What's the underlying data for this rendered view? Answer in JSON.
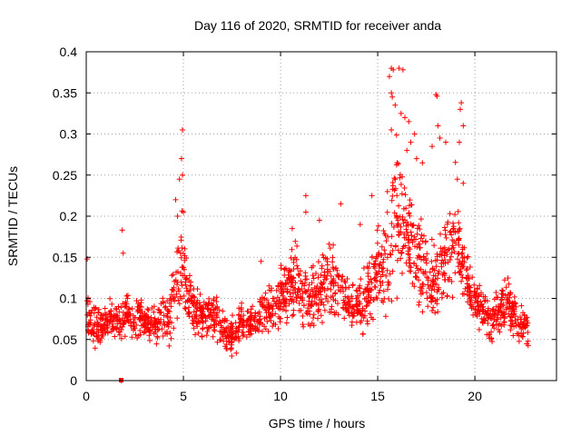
{
  "chart_data": {
    "type": "scatter",
    "title": "Day 116 of 2020, SRMTID for receiver anda",
    "xlabel": "GPS time / hours",
    "ylabel": "SRMTID / TECUs",
    "xlim": [
      0,
      24.2
    ],
    "ylim": [
      0,
      0.4
    ],
    "x_ticks": [
      0,
      5,
      10,
      15,
      20
    ],
    "x_tick_labels": [
      "0",
      "5",
      "10",
      "15",
      "20"
    ],
    "y_ticks": [
      0,
      0.05,
      0.1,
      0.15,
      0.2,
      0.25,
      0.3,
      0.35,
      0.4
    ],
    "y_tick_labels": [
      "0",
      "0.05",
      "0.1",
      "0.15",
      "0.2",
      "0.25",
      "0.3",
      "0.35",
      "0.4"
    ],
    "grid": true,
    "marker": "plus",
    "color": "#ff0000",
    "series": [
      {
        "name": "SRMTID",
        "x": [
          0.0,
          0.25,
          0.5,
          0.75,
          1.0,
          1.25,
          1.5,
          1.75,
          2.0,
          2.25,
          2.5,
          2.75,
          3.0,
          3.25,
          3.5,
          3.75,
          4.0,
          4.25,
          4.5,
          4.75,
          5.0,
          5.25,
          5.5,
          5.75,
          6.0,
          6.25,
          6.5,
          6.75,
          7.0,
          7.25,
          7.5,
          7.75,
          8.0,
          8.25,
          8.5,
          8.75,
          9.0,
          9.25,
          9.5,
          9.75,
          10.0,
          10.25,
          10.5,
          10.75,
          11.0,
          11.25,
          11.5,
          11.75,
          12.0,
          12.25,
          12.5,
          12.75,
          13.0,
          13.25,
          13.5,
          13.75,
          14.0,
          14.25,
          14.5,
          14.75,
          15.0,
          15.25,
          15.5,
          15.75,
          16.0,
          16.25,
          16.5,
          16.75,
          17.0,
          17.25,
          17.5,
          17.75,
          18.0,
          18.25,
          18.5,
          18.75,
          19.0,
          19.25,
          19.5,
          19.75,
          20.0,
          20.25,
          20.5,
          20.75,
          21.0,
          21.25,
          21.5,
          21.75,
          22.0,
          22.25,
          22.5,
          22.75
        ],
        "y": [
          0.075,
          0.07,
          0.065,
          0.06,
          0.07,
          0.075,
          0.072,
          0.068,
          0.085,
          0.08,
          0.075,
          0.078,
          0.072,
          0.068,
          0.066,
          0.07,
          0.074,
          0.08,
          0.1,
          0.14,
          0.15,
          0.11,
          0.09,
          0.08,
          0.08,
          0.082,
          0.078,
          0.07,
          0.06,
          0.058,
          0.055,
          0.06,
          0.07,
          0.07,
          0.075,
          0.078,
          0.08,
          0.085,
          0.09,
          0.095,
          0.1,
          0.11,
          0.12,
          0.12,
          0.11,
          0.1,
          0.1,
          0.105,
          0.11,
          0.12,
          0.12,
          0.115,
          0.11,
          0.1,
          0.095,
          0.09,
          0.09,
          0.095,
          0.11,
          0.12,
          0.13,
          0.14,
          0.15,
          0.18,
          0.2,
          0.18,
          0.17,
          0.16,
          0.15,
          0.14,
          0.13,
          0.13,
          0.13,
          0.135,
          0.14,
          0.15,
          0.2,
          0.15,
          0.13,
          0.11,
          0.1,
          0.09,
          0.08,
          0.075,
          0.08,
          0.085,
          0.09,
          0.09,
          0.08,
          0.07,
          0.065,
          0.06
        ],
        "spread": [
          0.03,
          0.03,
          0.025,
          0.025,
          0.025,
          0.025,
          0.025,
          0.025,
          0.03,
          0.03,
          0.03,
          0.03,
          0.025,
          0.025,
          0.025,
          0.025,
          0.03,
          0.035,
          0.05,
          0.08,
          0.08,
          0.05,
          0.035,
          0.03,
          0.03,
          0.03,
          0.03,
          0.03,
          0.025,
          0.025,
          0.025,
          0.025,
          0.025,
          0.025,
          0.025,
          0.025,
          0.03,
          0.03,
          0.03,
          0.035,
          0.04,
          0.045,
          0.05,
          0.05,
          0.045,
          0.04,
          0.04,
          0.04,
          0.045,
          0.05,
          0.05,
          0.045,
          0.045,
          0.04,
          0.04,
          0.035,
          0.035,
          0.04,
          0.045,
          0.05,
          0.06,
          0.07,
          0.08,
          0.09,
          0.1,
          0.09,
          0.08,
          0.07,
          0.07,
          0.065,
          0.06,
          0.06,
          0.06,
          0.06,
          0.065,
          0.07,
          0.08,
          0.06,
          0.05,
          0.04,
          0.035,
          0.035,
          0.03,
          0.03,
          0.03,
          0.03,
          0.035,
          0.035,
          0.03,
          0.025,
          0.025,
          0.02
        ],
        "outliers": [
          {
            "x": 0.05,
            "y": 0.148
          },
          {
            "x": 1.85,
            "y": 0.183
          },
          {
            "x": 1.9,
            "y": 0.155
          },
          {
            "x": 4.95,
            "y": 0.305
          },
          {
            "x": 4.9,
            "y": 0.27
          },
          {
            "x": 4.8,
            "y": 0.245
          },
          {
            "x": 4.95,
            "y": 0.25
          },
          {
            "x": 4.6,
            "y": 0.22
          },
          {
            "x": 4.7,
            "y": 0.2
          },
          {
            "x": 9.0,
            "y": 0.145
          },
          {
            "x": 10.6,
            "y": 0.185
          },
          {
            "x": 11.3,
            "y": 0.225
          },
          {
            "x": 11.3,
            "y": 0.205
          },
          {
            "x": 12.0,
            "y": 0.195
          },
          {
            "x": 13.1,
            "y": 0.215
          },
          {
            "x": 14.1,
            "y": 0.19
          },
          {
            "x": 14.7,
            "y": 0.225
          },
          {
            "x": 15.5,
            "y": 0.23
          },
          {
            "x": 15.7,
            "y": 0.38
          },
          {
            "x": 15.8,
            "y": 0.378
          },
          {
            "x": 16.3,
            "y": 0.378
          },
          {
            "x": 15.6,
            "y": 0.37
          },
          {
            "x": 15.7,
            "y": 0.35
          },
          {
            "x": 15.75,
            "y": 0.345
          },
          {
            "x": 15.9,
            "y": 0.335
          },
          {
            "x": 16.2,
            "y": 0.325
          },
          {
            "x": 16.4,
            "y": 0.32
          },
          {
            "x": 16.6,
            "y": 0.315
          },
          {
            "x": 16.7,
            "y": 0.29
          },
          {
            "x": 16.5,
            "y": 0.28
          },
          {
            "x": 15.7,
            "y": 0.305
          },
          {
            "x": 16.0,
            "y": 0.265
          },
          {
            "x": 16.9,
            "y": 0.3
          },
          {
            "x": 17.0,
            "y": 0.27
          },
          {
            "x": 18.0,
            "y": 0.348
          },
          {
            "x": 18.05,
            "y": 0.346
          },
          {
            "x": 18.1,
            "y": 0.31
          },
          {
            "x": 18.2,
            "y": 0.295
          },
          {
            "x": 17.3,
            "y": 0.265
          },
          {
            "x": 19.3,
            "y": 0.338
          },
          {
            "x": 19.25,
            "y": 0.33
          },
          {
            "x": 19.4,
            "y": 0.31
          },
          {
            "x": 19.2,
            "y": 0.29
          },
          {
            "x": 19.1,
            "y": 0.245
          },
          {
            "x": 19.4,
            "y": 0.24
          },
          {
            "x": 18.5,
            "y": 0.29
          },
          {
            "x": 17.8,
            "y": 0.285
          },
          {
            "x": 16.1,
            "y": 0.38
          },
          {
            "x": 1.8,
            "y": 0.0
          }
        ]
      }
    ]
  }
}
